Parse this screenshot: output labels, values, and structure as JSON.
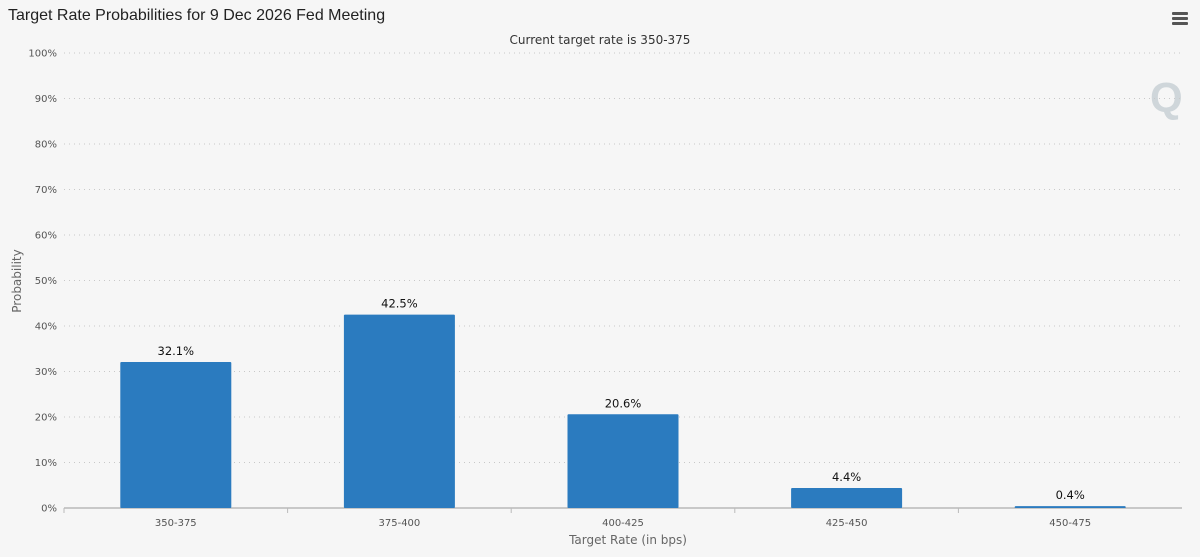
{
  "header": {
    "title": "Target Rate Probabilities for 9 Dec 2026 Fed Meeting",
    "menu_icon": "hamburger-menu-icon"
  },
  "watermark": {
    "text": "Q"
  },
  "chart_data": {
    "type": "bar",
    "subtitle": "Current target rate is 350-375",
    "xlabel": "Target Rate (in bps)",
    "ylabel": "Probability",
    "categories": [
      "350-375",
      "375-400",
      "400-425",
      "425-450",
      "450-475"
    ],
    "values": [
      32.1,
      42.5,
      20.6,
      4.4,
      0.4
    ],
    "data_labels": [
      "32.1%",
      "42.5%",
      "20.6%",
      "4.4%",
      "0.4%"
    ],
    "ylim": [
      0,
      100
    ],
    "yticks": [
      0,
      10,
      20,
      30,
      40,
      50,
      60,
      70,
      80,
      90,
      100
    ],
    "ytick_labels": [
      "0%",
      "10%",
      "20%",
      "30%",
      "40%",
      "50%",
      "60%",
      "70%",
      "80%",
      "90%",
      "100%"
    ],
    "grid": true,
    "bar_color": "#2b7bbf"
  }
}
